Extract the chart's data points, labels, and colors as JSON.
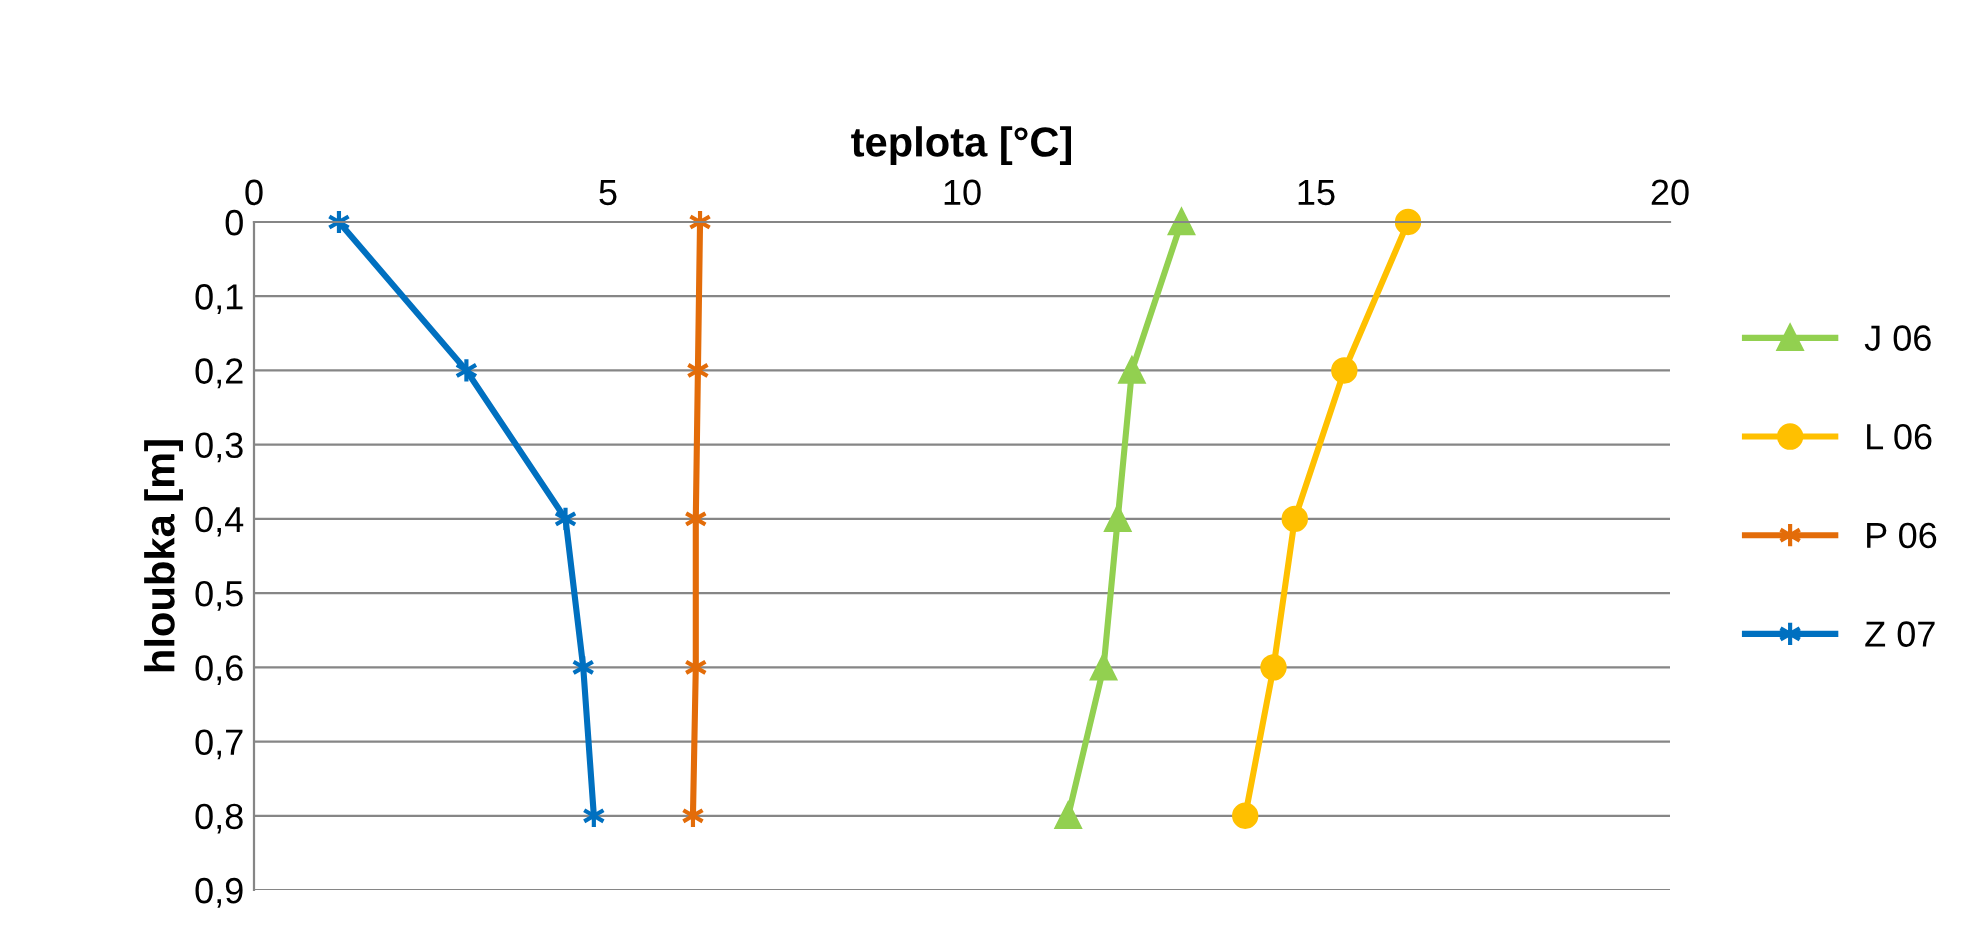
{
  "chart_data": {
    "type": "line",
    "xlabel": "teplota [°C]",
    "ylabel": "hloubka [m]",
    "xlim": [
      0,
      20
    ],
    "xticks": [
      0,
      5,
      10,
      15,
      20
    ],
    "ylim": [
      0.9,
      0
    ],
    "yticks": [
      {
        "value": 0,
        "label": "0"
      },
      {
        "value": 0.1,
        "label": "0,1"
      },
      {
        "value": 0.2,
        "label": "0,2"
      },
      {
        "value": 0.3,
        "label": "0,3"
      },
      {
        "value": 0.4,
        "label": "0,4"
      },
      {
        "value": 0.5,
        "label": "0,5"
      },
      {
        "value": 0.6,
        "label": "0,6"
      },
      {
        "value": 0.7,
        "label": "0,7"
      },
      {
        "value": 0.8,
        "label": "0,8"
      },
      {
        "value": 0.9,
        "label": "0,9"
      }
    ],
    "grid": "y",
    "legend": "right",
    "series": [
      {
        "name": "J 06",
        "color": "#92d050",
        "marker": "triangle",
        "x": [
          13.1,
          12.4,
          12.2,
          12.0,
          11.5
        ],
        "values": [
          0,
          0.2,
          0.4,
          0.6,
          0.8
        ]
      },
      {
        "name": "L 06",
        "color": "#ffc000",
        "marker": "circle",
        "x": [
          16.3,
          15.4,
          14.7,
          14.4,
          14.0
        ],
        "values": [
          0,
          0.2,
          0.4,
          0.6,
          0.8
        ]
      },
      {
        "name": "P 06",
        "color": "#e36c09",
        "marker": "cross",
        "x": [
          6.3,
          6.27,
          6.24,
          6.24,
          6.2
        ],
        "values": [
          0,
          0.2,
          0.4,
          0.6,
          0.8
        ]
      },
      {
        "name": "Z 07",
        "color": "#0070c0",
        "marker": "cross",
        "x": [
          1.2,
          3.0,
          4.4,
          4.65,
          4.8
        ],
        "values": [
          0,
          0.2,
          0.4,
          0.6,
          0.8
        ]
      }
    ]
  }
}
